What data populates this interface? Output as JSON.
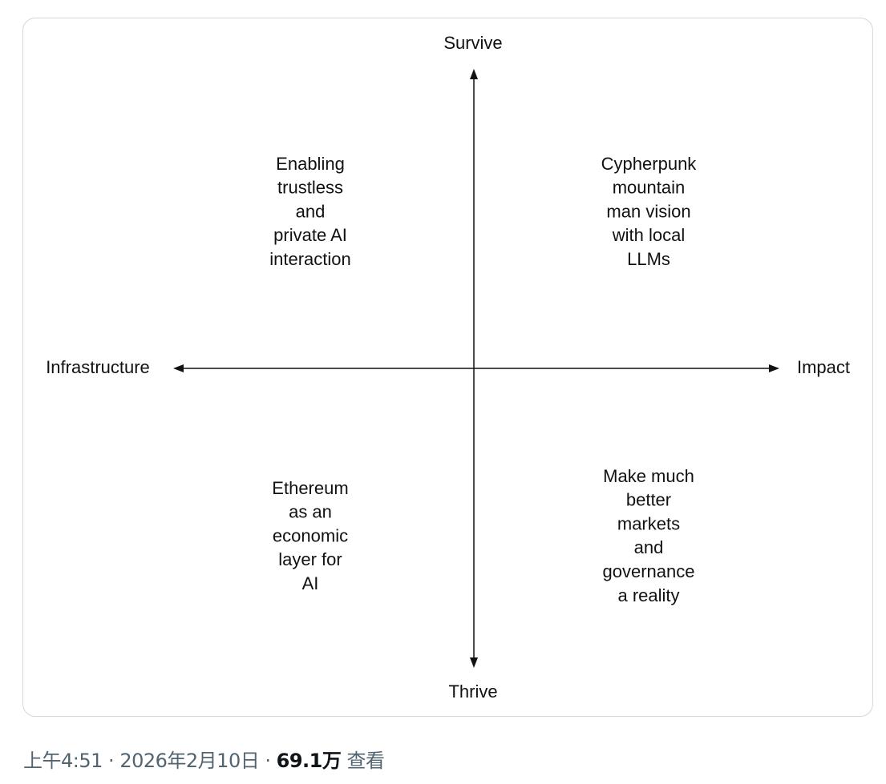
{
  "diagram": {
    "axes": {
      "top": "Survive",
      "bottom": "Thrive",
      "left": "Infrastructure",
      "right": "Impact"
    },
    "quadrants": [
      {
        "position": "top-left",
        "lines": [
          "Enabling",
          "trustless",
          "and",
          "private AI",
          "interaction"
        ]
      },
      {
        "position": "top-right",
        "lines": [
          "Cypherpunk",
          "mountain",
          "man vision",
          "with local",
          "LLMs"
        ]
      },
      {
        "position": "bottom-left",
        "lines": [
          "Ethereum",
          "as an",
          "economic",
          "layer for",
          "AI"
        ]
      },
      {
        "position": "bottom-right",
        "lines": [
          "Make much",
          "better",
          "markets",
          "and",
          "governance",
          "a reality"
        ]
      }
    ]
  },
  "footer": {
    "time": "上午4:51",
    "separator": "·",
    "date": "2026年2月10日",
    "views": "69.1万",
    "views_label": "查看"
  }
}
